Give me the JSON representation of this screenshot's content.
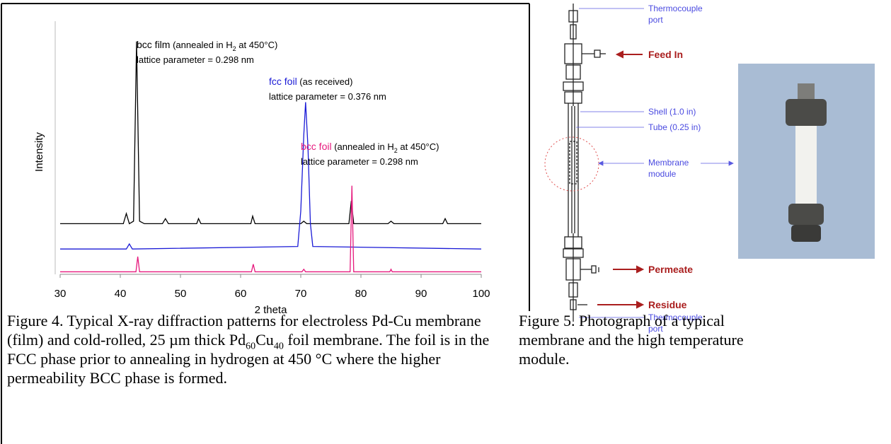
{
  "chart_data": {
    "type": "line",
    "x_label": "2 theta",
    "y_label": "Intensity",
    "xlim": [
      30,
      100
    ],
    "xticks": [
      30,
      40,
      50,
      60,
      70,
      80,
      90,
      100
    ],
    "ylim": [
      0,
      100
    ],
    "series": [
      {
        "color": "#000000",
        "x": [
          30,
          40.5,
          41,
          41.5,
          42.2,
          42.7,
          43.2,
          44,
          47,
          47.5,
          48,
          52.7,
          53,
          53.4,
          61.7,
          62,
          62.4,
          70,
          70.5,
          71,
          78,
          78.4,
          78.8,
          84.5,
          85,
          85.5,
          93.6,
          94,
          94.4,
          100
        ],
        "values": [
          20,
          20,
          24,
          20,
          21,
          92,
          21,
          20,
          20,
          22,
          20,
          20,
          22,
          20,
          20,
          23,
          20,
          20,
          21,
          20,
          20,
          29,
          20,
          20,
          21,
          20,
          20,
          22,
          20,
          20
        ]
      },
      {
        "color": "#1a1ad6",
        "x": [
          30,
          41,
          41.5,
          42,
          69.5,
          70,
          70.5,
          70.8,
          71.2,
          71.6,
          72,
          100
        ],
        "values": [
          10,
          10,
          12,
          10,
          11,
          25,
          55,
          68,
          50,
          20,
          11,
          10
        ]
      },
      {
        "color": "#e6197d",
        "x": [
          30,
          42.6,
          42.9,
          43.2,
          61.8,
          62.1,
          62.4,
          70.2,
          70.5,
          70.8,
          78.2,
          78.5,
          78.8,
          84.8,
          85,
          85.2,
          100
        ],
        "values": [
          1,
          1,
          7,
          1,
          1,
          4,
          1,
          1,
          2,
          1,
          1,
          35,
          1,
          1,
          2,
          1,
          1
        ]
      }
    ],
    "annotations": [
      {
        "name": "bcc film",
        "color": "#000000",
        "detail": " (annealed in H",
        "sub": "2",
        "rest": " at 450°C)",
        "lattice": "lattice parameter = 0.298 nm"
      },
      {
        "name": "fcc foil",
        "color": "#1a1ad6",
        "detail": " (as received)",
        "lattice": "lattice parameter = 0.376 nm"
      },
      {
        "name": "bcc foil",
        "color": "#e6197d",
        "detail": " (annealed in H",
        "sub": "2",
        "rest": " at 450°C)",
        "lattice": "lattice parameter = 0.298 nm"
      }
    ]
  },
  "diagram": {
    "labels": [
      {
        "lines": [
          "Thermocouple",
          "port"
        ]
      },
      {
        "lines": [
          "Feed In"
        ]
      },
      {
        "lines": [
          "Shell (1.0 in)"
        ]
      },
      {
        "lines": [
          "Tube (0.25 in)"
        ]
      },
      {
        "lines": [
          "Membrane",
          "module"
        ]
      },
      {
        "lines": [
          "Permeate"
        ]
      },
      {
        "lines": [
          "Residue"
        ]
      },
      {
        "lines": [
          "Thermocouple",
          "port"
        ]
      }
    ]
  },
  "captions": {
    "figure4": [
      "Figure 4.  Typical X-ray diffraction patterns for electroless Pd-Cu membrane (film) and cold-rolled, 25 µm thick Pd",
      "60",
      "Cu",
      "40",
      " foil membrane.  The foil is in the FCC phase prior to annealing in hydrogen at 450 °C where the higher permeability BCC phase is formed."
    ],
    "figure5": [
      "Figure 5.  Photograph of a typical membrane and the high temperature module."
    ]
  }
}
